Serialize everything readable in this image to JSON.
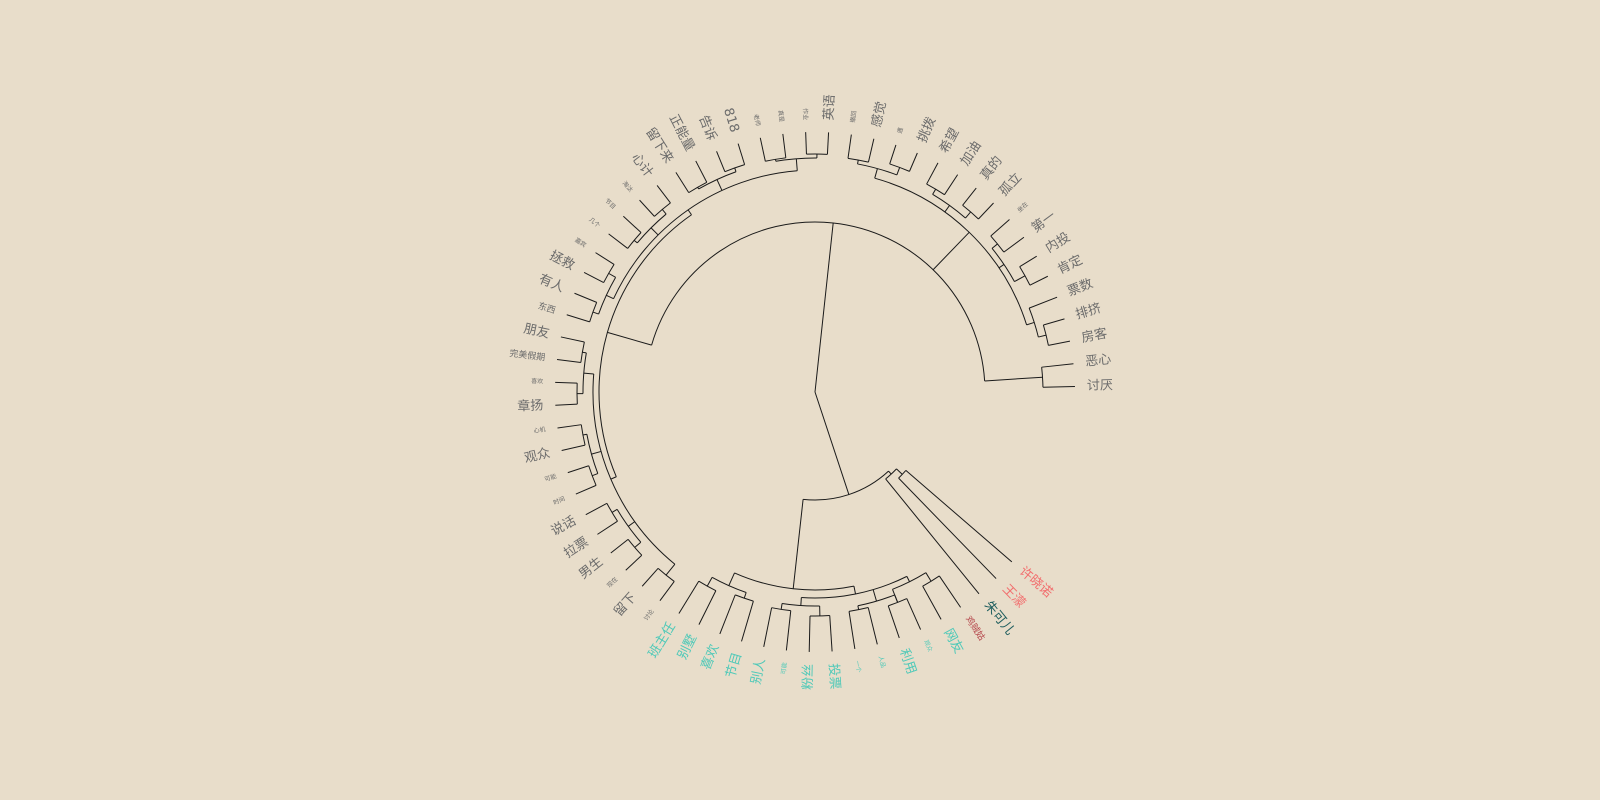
{
  "diagram": {
    "type": "circular-dendrogram",
    "background_color": "#e8ddca",
    "line_color": "#1a1a1a",
    "group_colors": {
      "grey": "#6b6b6b",
      "teal": "#4ec9b8",
      "red": "#f26d6d",
      "darkteal": "#1f5e5e",
      "darkred": "#b5464b"
    },
    "leaves": [
      {
        "label": "讨厌",
        "group": "grey",
        "size": "m"
      },
      {
        "label": "恶心",
        "group": "grey",
        "size": "m"
      },
      {
        "label": "房客",
        "group": "grey",
        "size": "m"
      },
      {
        "label": "排挤",
        "group": "grey",
        "size": "m"
      },
      {
        "label": "票数",
        "group": "grey",
        "size": "m"
      },
      {
        "label": "肯定",
        "group": "grey",
        "size": "m"
      },
      {
        "label": "内投",
        "group": "grey",
        "size": "m"
      },
      {
        "label": "第一",
        "group": "grey",
        "size": "m"
      },
      {
        "label": "坐在",
        "group": "grey",
        "size": "xs"
      },
      {
        "label": "孤立",
        "group": "grey",
        "size": "m"
      },
      {
        "label": "真的",
        "group": "grey",
        "size": "m"
      },
      {
        "label": "加油",
        "group": "grey",
        "size": "m"
      },
      {
        "label": "希望",
        "group": "grey",
        "size": "m"
      },
      {
        "label": "挑拨",
        "group": "grey",
        "size": "m"
      },
      {
        "label": "遇",
        "group": "grey",
        "size": "xs"
      },
      {
        "label": "感觉",
        "group": "grey",
        "size": "m"
      },
      {
        "label": "撤回",
        "group": "grey",
        "size": "xs"
      },
      {
        "label": "英语",
        "group": "grey",
        "size": "m"
      },
      {
        "label": "作业",
        "group": "grey",
        "size": "xs"
      },
      {
        "label": "真是",
        "group": "grey",
        "size": "xs"
      },
      {
        "label": "老师",
        "group": "grey",
        "size": "xs"
      },
      {
        "label": "818",
        "group": "grey",
        "size": "m"
      },
      {
        "label": "告诉",
        "group": "grey",
        "size": "m"
      },
      {
        "label": "正能量",
        "group": "grey",
        "size": "m"
      },
      {
        "label": "留下来",
        "group": "grey",
        "size": "m"
      },
      {
        "label": "心计",
        "group": "grey",
        "size": "m"
      },
      {
        "label": "淘汰",
        "group": "grey",
        "size": "xs"
      },
      {
        "label": "节目",
        "group": "grey",
        "size": "xs"
      },
      {
        "label": "几个",
        "group": "grey",
        "size": "xs"
      },
      {
        "label": "嘉宾",
        "group": "grey",
        "size": "xs"
      },
      {
        "label": "拯救",
        "group": "grey",
        "size": "m"
      },
      {
        "label": "有人",
        "group": "grey",
        "size": "m"
      },
      {
        "label": "东西",
        "group": "grey",
        "size": "s"
      },
      {
        "label": "朋友",
        "group": "grey",
        "size": "m"
      },
      {
        "label": "完美假期",
        "group": "grey",
        "size": "s"
      },
      {
        "label": "喜欢",
        "group": "grey",
        "size": "xs"
      },
      {
        "label": "章扬",
        "group": "grey",
        "size": "m"
      },
      {
        "label": "心机",
        "group": "grey",
        "size": "xs"
      },
      {
        "label": "观众",
        "group": "grey",
        "size": "m"
      },
      {
        "label": "可能",
        "group": "grey",
        "size": "xs"
      },
      {
        "label": "时间",
        "group": "grey",
        "size": "xs"
      },
      {
        "label": "说话",
        "group": "grey",
        "size": "m"
      },
      {
        "label": "拉票",
        "group": "grey",
        "size": "m"
      },
      {
        "label": "男生",
        "group": "grey",
        "size": "m"
      },
      {
        "label": "现在",
        "group": "grey",
        "size": "xs"
      },
      {
        "label": "留下",
        "group": "grey",
        "size": "m"
      },
      {
        "label": "讨论",
        "group": "grey",
        "size": "xs"
      },
      {
        "label": "班主任",
        "group": "teal",
        "size": "m"
      },
      {
        "label": "别墅",
        "group": "teal",
        "size": "m"
      },
      {
        "label": "喜欢",
        "group": "teal",
        "size": "m"
      },
      {
        "label": "节目",
        "group": "teal",
        "size": "m"
      },
      {
        "label": "别人",
        "group": "teal",
        "size": "m"
      },
      {
        "label": "可能",
        "group": "teal",
        "size": "xs"
      },
      {
        "label": "粉丝",
        "group": "teal",
        "size": "m"
      },
      {
        "label": "投票",
        "group": "teal",
        "size": "m"
      },
      {
        "label": "一个",
        "group": "teal",
        "size": "xs"
      },
      {
        "label": "人品",
        "group": "teal",
        "size": "xs"
      },
      {
        "label": "利用",
        "group": "teal",
        "size": "m"
      },
      {
        "label": "观众",
        "group": "teal",
        "size": "xs"
      },
      {
        "label": "网友",
        "group": "teal",
        "size": "m"
      },
      {
        "label": "鸡贼姑",
        "group": "darkred",
        "size": "s"
      },
      {
        "label": "朱可儿",
        "group": "darkteal",
        "size": "m"
      },
      {
        "label": "王濛",
        "group": "red",
        "size": "m"
      },
      {
        "label": "许晓诺",
        "group": "red",
        "size": "m"
      }
    ]
  }
}
